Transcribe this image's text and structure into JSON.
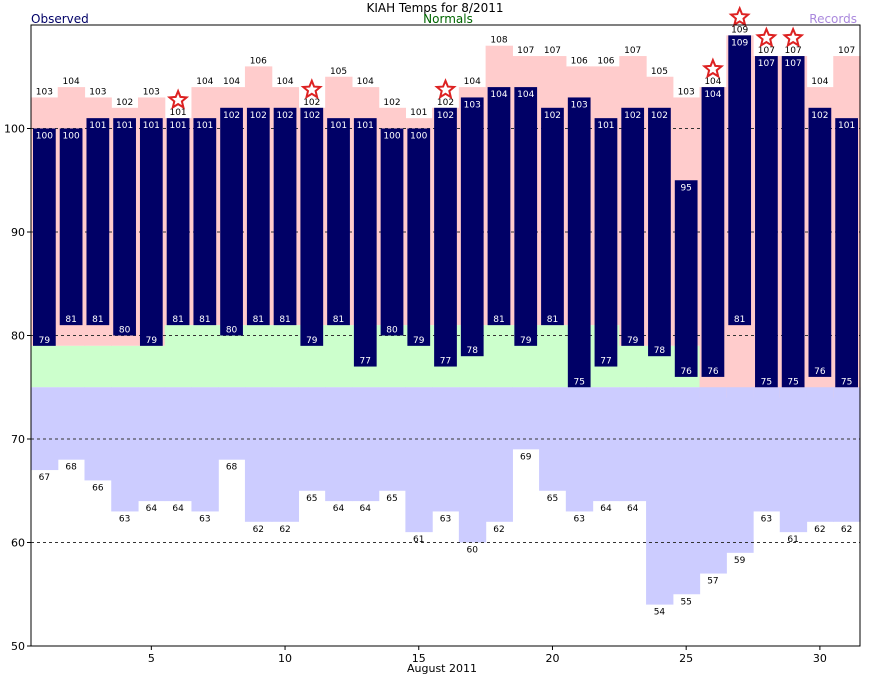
{
  "chart_data": {
    "type": "bar",
    "title": "KIAH Temps for 8/2011",
    "legend": {
      "observed": "Observed",
      "normals": "Normals",
      "records": "Records"
    },
    "xlabel": "August 2011",
    "ylim": [
      50,
      110
    ],
    "y_ticks": [
      50,
      60,
      70,
      80,
      90,
      100
    ],
    "x_ticks": [
      5,
      10,
      15,
      20,
      25,
      30
    ],
    "gridlines": "dashed at 60, 70, 80, 90, 100",
    "days": [
      1,
      2,
      3,
      4,
      5,
      6,
      7,
      8,
      9,
      10,
      11,
      12,
      13,
      14,
      15,
      16,
      17,
      18,
      19,
      20,
      21,
      22,
      23,
      24,
      25,
      26,
      27,
      28,
      29,
      30,
      31
    ],
    "observed_high": [
      100,
      100,
      101,
      101,
      101,
      101,
      101,
      102,
      102,
      102,
      102,
      101,
      101,
      100,
      100,
      102,
      103,
      104,
      104,
      102,
      103,
      101,
      102,
      102,
      95,
      104,
      109,
      107,
      107,
      102,
      101
    ],
    "observed_low": [
      79,
      81,
      81,
      80,
      79,
      81,
      81,
      80,
      81,
      81,
      79,
      81,
      77,
      80,
      79,
      77,
      78,
      81,
      79,
      81,
      75,
      77,
      79,
      78,
      76,
      76,
      81,
      75,
      75,
      76,
      75
    ],
    "record_high": [
      103,
      104,
      103,
      102,
      103,
      101,
      104,
      104,
      106,
      104,
      102,
      105,
      104,
      102,
      101,
      102,
      104,
      108,
      107,
      107,
      106,
      106,
      107,
      105,
      103,
      104,
      109,
      107,
      107,
      104,
      107
    ],
    "record_low": [
      67,
      68,
      66,
      63,
      64,
      64,
      63,
      68,
      62,
      62,
      65,
      64,
      64,
      65,
      61,
      63,
      60,
      62,
      69,
      65,
      63,
      64,
      64,
      54,
      55,
      57,
      59,
      63,
      61,
      62,
      62
    ],
    "normal_high": [
      79,
      79,
      79,
      79,
      79,
      81,
      81,
      81,
      81,
      81,
      81,
      81,
      81,
      81,
      81,
      81,
      81,
      81,
      81,
      81,
      81,
      81,
      79,
      79,
      79,
      74,
      74,
      74,
      74,
      74,
      74
    ],
    "normal_low": [
      75,
      75,
      75,
      75,
      75,
      75,
      75,
      75,
      75,
      75,
      75,
      75,
      75,
      75,
      75,
      75,
      75,
      75,
      75,
      75,
      75,
      75,
      75,
      75,
      75,
      75,
      75,
      75,
      75,
      75,
      75
    ],
    "record_set_days": [
      6,
      11,
      16,
      26,
      27,
      28,
      29
    ],
    "colors": {
      "observed": "#000066",
      "record_high_fill": "#ffcccc",
      "record_low_fill": "#ccccff",
      "normal_fill": "#ccffcc",
      "title_text": "#000000",
      "observed_legend": "#000066",
      "normals_legend": "#006600",
      "records_legend": "#aa88dd",
      "star": "#dd2222"
    }
  }
}
